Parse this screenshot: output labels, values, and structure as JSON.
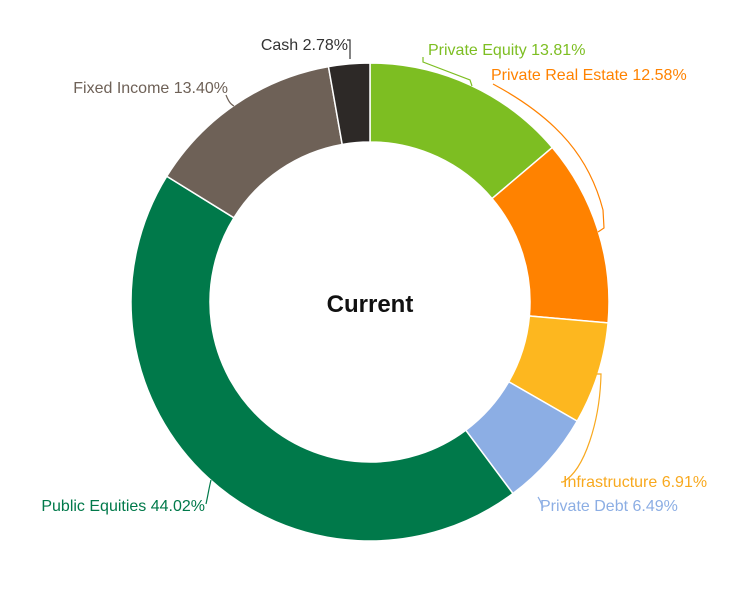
{
  "chart_data": {
    "type": "pie",
    "title": "Current",
    "categories": [
      "Private Equity",
      "Private Real Estate",
      "Infrastructure",
      "Private Debt",
      "Public Equities",
      "Fixed Income",
      "Cash"
    ],
    "values": [
      13.81,
      12.58,
      6.91,
      6.49,
      44.02,
      13.4,
      2.78
    ],
    "slice_colors": [
      "#7dbe22",
      "#ff8200",
      "#fdb71f",
      "#8caee4",
      "#00794a",
      "#6e6157",
      "#2d2927"
    ],
    "label_colors": [
      "#7dbe22",
      "#ff8200",
      "#f8a91f",
      "#8caee4",
      "#00794a",
      "#6e6157",
      "#333333"
    ],
    "labels": [
      "Private Equity 13.81%",
      "Private Real Estate 12.58%",
      "Infrastructure 6.91%",
      "Private Debt 6.49%",
      "Public Equities 44.02%",
      "Fixed Income 13.40%",
      "Cash 2.78%"
    ],
    "donut": true,
    "legend": "none"
  }
}
